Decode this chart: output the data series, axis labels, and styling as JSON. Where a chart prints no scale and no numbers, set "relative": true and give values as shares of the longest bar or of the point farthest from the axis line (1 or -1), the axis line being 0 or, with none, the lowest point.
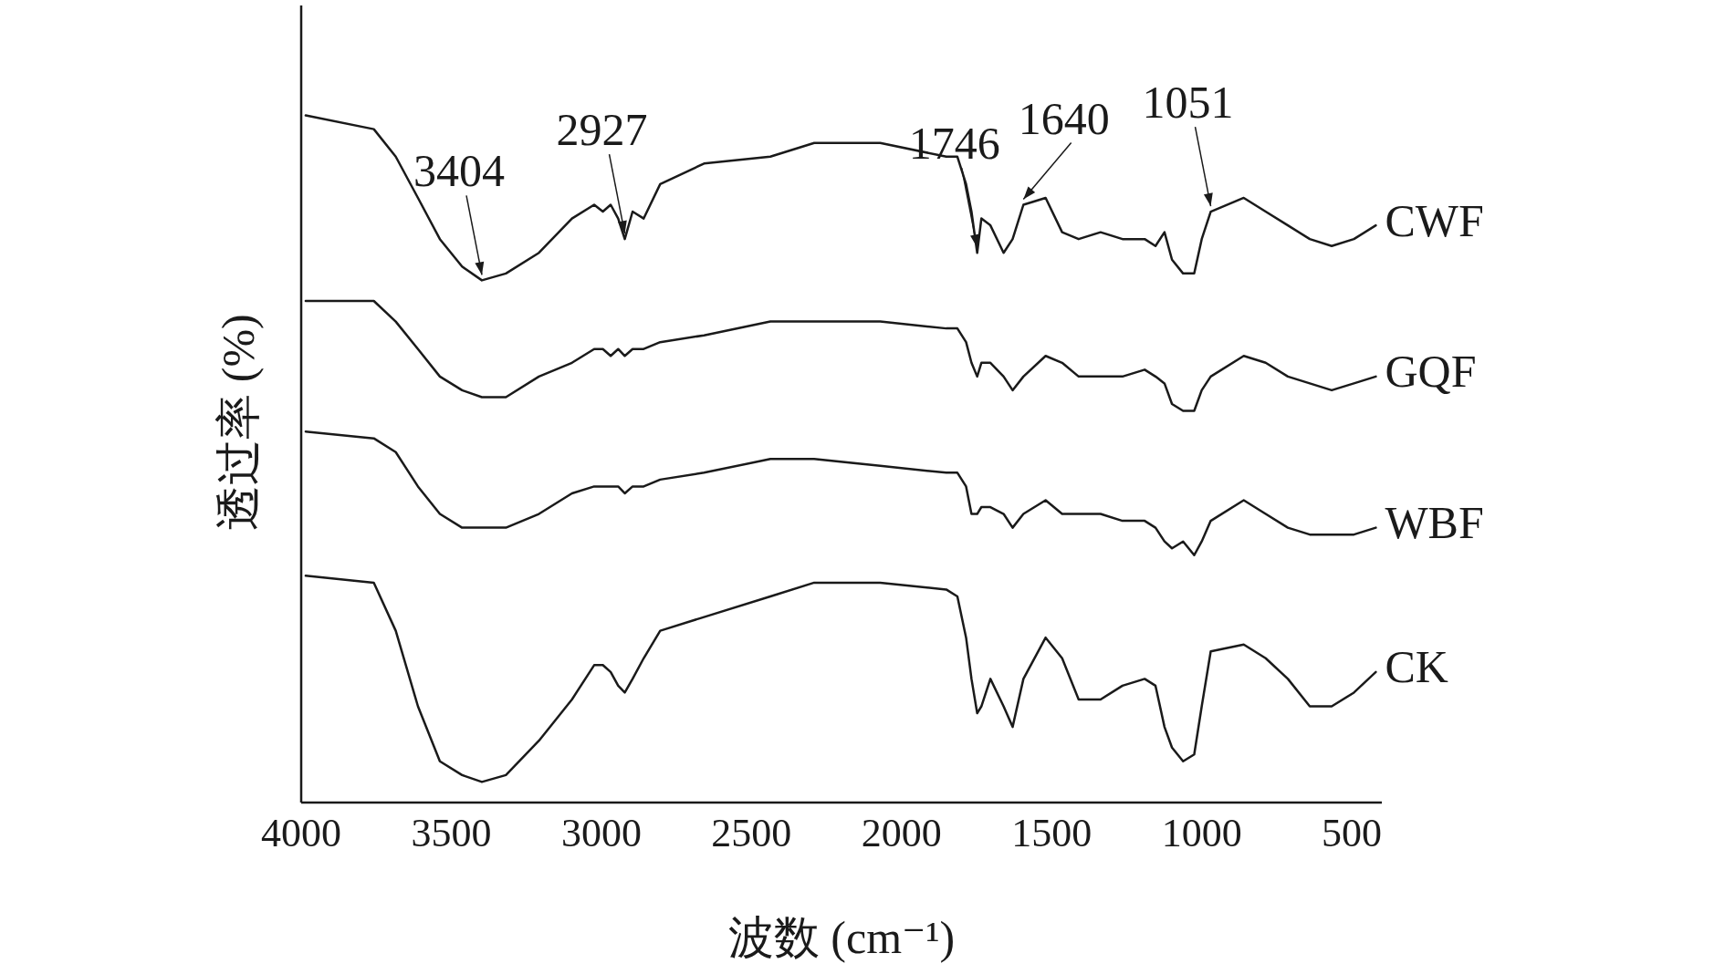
{
  "chart_data": {
    "type": "line",
    "relative": true,
    "xlabel": "波数 (cm⁻¹)",
    "ylabel": "透过率 (%)",
    "xlim": [
      4000,
      400
    ],
    "xticks": [
      4000,
      3500,
      3000,
      2500,
      2000,
      1500,
      1000,
      500
    ],
    "x": [
      3985,
      3758,
      3685,
      3611,
      3538,
      3464,
      3398,
      3318,
      3208,
      3098,
      3024,
      2995,
      2969,
      2944,
      2922,
      2896,
      2859,
      2804,
      2658,
      2437,
      2291,
      2071,
      1851,
      1814,
      1785,
      1767,
      1748,
      1734,
      1704,
      1660,
      1630,
      1594,
      1520,
      1465,
      1410,
      1337,
      1264,
      1190,
      1154,
      1124,
      1099,
      1062,
      1025,
      1000,
      970,
      860,
      787,
      713,
      640,
      567,
      493,
      420
    ],
    "series": [
      {
        "name": "CWF",
        "color": "#1a1a1a",
        "values": [
          1.0,
          0.98,
          0.94,
          0.88,
          0.82,
          0.78,
          0.76,
          0.77,
          0.8,
          0.85,
          0.87,
          0.86,
          0.87,
          0.85,
          0.82,
          0.86,
          0.85,
          0.9,
          0.93,
          0.94,
          0.96,
          0.96,
          0.94,
          0.94,
          0.9,
          0.86,
          0.8,
          0.85,
          0.84,
          0.8,
          0.82,
          0.87,
          0.88,
          0.83,
          0.82,
          0.83,
          0.82,
          0.82,
          0.81,
          0.83,
          0.79,
          0.77,
          0.77,
          0.82,
          0.86,
          0.88,
          0.86,
          0.84,
          0.82,
          0.81,
          0.82,
          0.84
        ]
      },
      {
        "name": "GQF",
        "color": "#1a1a1a",
        "values": [
          0.73,
          0.73,
          0.7,
          0.66,
          0.62,
          0.6,
          0.59,
          0.59,
          0.62,
          0.64,
          0.66,
          0.66,
          0.65,
          0.66,
          0.65,
          0.66,
          0.66,
          0.67,
          0.68,
          0.7,
          0.7,
          0.7,
          0.69,
          0.69,
          0.67,
          0.64,
          0.62,
          0.64,
          0.64,
          0.62,
          0.6,
          0.62,
          0.65,
          0.64,
          0.62,
          0.62,
          0.62,
          0.63,
          0.62,
          0.61,
          0.58,
          0.57,
          0.57,
          0.6,
          0.62,
          0.65,
          0.64,
          0.62,
          0.61,
          0.6,
          0.61,
          0.62
        ]
      },
      {
        "name": "WBF",
        "color": "#1a1a1a",
        "values": [
          0.54,
          0.53,
          0.51,
          0.46,
          0.42,
          0.4,
          0.4,
          0.4,
          0.42,
          0.45,
          0.46,
          0.46,
          0.46,
          0.46,
          0.45,
          0.46,
          0.46,
          0.47,
          0.48,
          0.5,
          0.5,
          0.49,
          0.48,
          0.48,
          0.46,
          0.42,
          0.42,
          0.43,
          0.43,
          0.42,
          0.4,
          0.42,
          0.44,
          0.42,
          0.42,
          0.42,
          0.41,
          0.41,
          0.4,
          0.38,
          0.37,
          0.38,
          0.36,
          0.38,
          0.41,
          0.44,
          0.42,
          0.4,
          0.39,
          0.39,
          0.39,
          0.4
        ]
      },
      {
        "name": "CK",
        "color": "#1a1a1a",
        "values": [
          0.33,
          0.32,
          0.25,
          0.14,
          0.06,
          0.04,
          0.03,
          0.04,
          0.09,
          0.15,
          0.2,
          0.2,
          0.19,
          0.17,
          0.16,
          0.18,
          0.21,
          0.25,
          0.27,
          0.3,
          0.32,
          0.32,
          0.31,
          0.3,
          0.24,
          0.18,
          0.13,
          0.14,
          0.18,
          0.14,
          0.11,
          0.18,
          0.24,
          0.21,
          0.15,
          0.15,
          0.17,
          0.18,
          0.17,
          0.11,
          0.08,
          0.06,
          0.07,
          0.14,
          0.22,
          0.23,
          0.21,
          0.18,
          0.14,
          0.14,
          0.16,
          0.19
        ]
      }
    ],
    "annotations": [
      {
        "text": "3404",
        "x": 3398,
        "y": 0.76
      },
      {
        "text": "2927",
        "x": 2922,
        "y": 0.82
      },
      {
        "text": "1746",
        "x": 1748,
        "y": 0.8
      },
      {
        "text": "1640",
        "x": 1594,
        "y": 0.87
      },
      {
        "text": "1051",
        "x": 970,
        "y": 0.86
      }
    ]
  }
}
